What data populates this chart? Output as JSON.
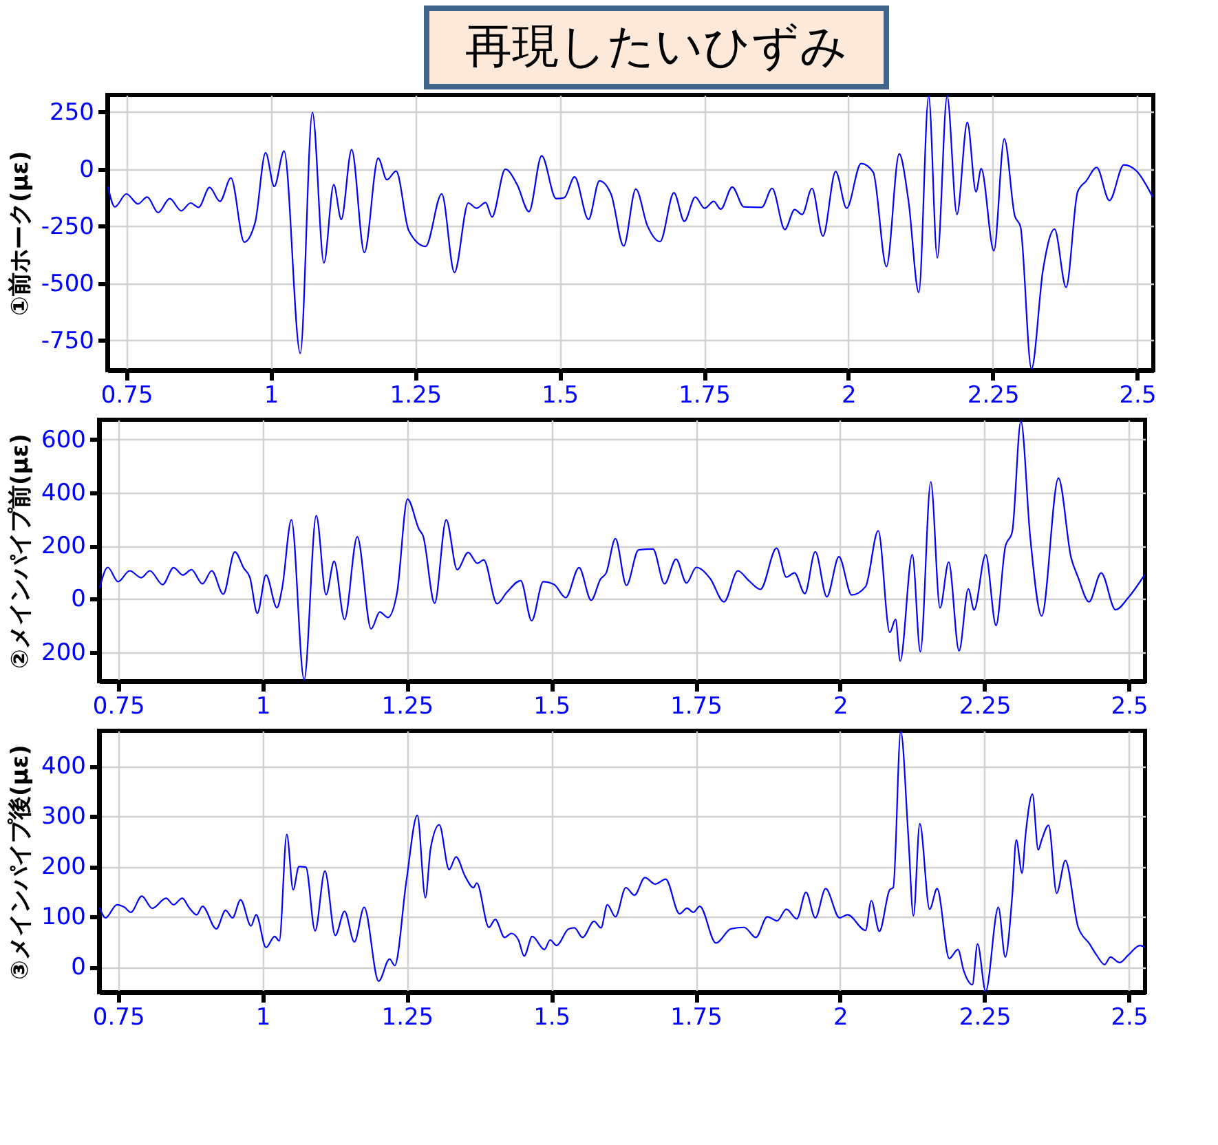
{
  "chart_data": [
    {
      "type": "line",
      "title": "再現したいひずみ",
      "ylabel": "①前ホーク(με)",
      "color": "#0000ff",
      "grid": true,
      "xlim": [
        0.717,
        2.528
      ],
      "ylim": [
        -880,
        325
      ],
      "xticks": [
        0.75,
        1,
        1.25,
        1.5,
        1.75,
        2,
        2.25,
        2.5
      ],
      "yticks": [
        -750,
        -500,
        -250,
        0,
        250
      ],
      "x": [
        0.718,
        0.73,
        0.75,
        0.77,
        0.786,
        0.805,
        0.825,
        0.845,
        0.861,
        0.875,
        0.894,
        0.912,
        0.931,
        0.954,
        0.973,
        0.991,
        1.006,
        1.023,
        1.051,
        1.072,
        1.092,
        1.109,
        1.122,
        1.14,
        1.162,
        1.186,
        1.201,
        1.217,
        1.239,
        1.268,
        1.296,
        1.318,
        1.342,
        1.356,
        1.372,
        1.383,
        1.406,
        1.427,
        1.447,
        1.469,
        1.494,
        1.508,
        1.526,
        1.55,
        1.569,
        1.589,
        1.611,
        1.632,
        1.652,
        1.674,
        1.698,
        1.716,
        1.735,
        1.751,
        1.767,
        1.779,
        1.799,
        1.819,
        1.85,
        1.868,
        1.89,
        1.907,
        1.92,
        1.937,
        1.956,
        1.978,
        1.997,
        2.022,
        2.043,
        2.066,
        2.088,
        2.104,
        2.122,
        2.139,
        2.154,
        2.171,
        2.188,
        2.206,
        2.221,
        2.23,
        2.252,
        2.27,
        2.288,
        2.298,
        2.317,
        2.337,
        2.357,
        2.377,
        2.397,
        2.412,
        2.43,
        2.452,
        2.477,
        2.499,
        2.527
      ],
      "values": [
        -76,
        -165,
        -108,
        -152,
        -122,
        -190,
        -129,
        -182,
        -148,
        -167,
        -80,
        -141,
        -38,
        -319,
        -232,
        72,
        -76,
        80,
        -806,
        249,
        -410,
        -68,
        -220,
        86,
        -365,
        48,
        -46,
        -8,
        -270,
        -338,
        -108,
        -452,
        -148,
        -171,
        -146,
        -209,
        0,
        -70,
        -186,
        59,
        -129,
        -125,
        -34,
        -220,
        -51,
        -108,
        -336,
        -87,
        -247,
        -317,
        -103,
        -228,
        -122,
        -171,
        -141,
        -175,
        -78,
        -165,
        -167,
        -84,
        -264,
        -177,
        -198,
        -84,
        -293,
        -10,
        -171,
        25,
        -13,
        -426,
        67,
        -137,
        -540,
        320,
        -388,
        320,
        -198,
        205,
        -99,
        2,
        -357,
        133,
        -203,
        -251,
        -874,
        -441,
        -262,
        -517,
        -99,
        -51,
        8,
        -137,
        19,
        -8,
        -122
      ]
    },
    {
      "type": "line",
      "ylabel": "②メインパイプ前(με)",
      "color": "#0000ff",
      "grid": true,
      "xlim": [
        0.717,
        2.528
      ],
      "ylim": [
        -310,
        675
      ],
      "xticks": [
        0.75,
        1,
        1.25,
        1.5,
        1.75,
        2,
        2.25,
        2.5
      ],
      "yticks": [
        {
          "value": -200,
          "label": "200"
        },
        0,
        200,
        400,
        600
      ],
      "x": [
        0.718,
        0.732,
        0.75,
        0.77,
        0.79,
        0.805,
        0.827,
        0.846,
        0.862,
        0.877,
        0.896,
        0.912,
        0.932,
        0.952,
        0.968,
        0.978,
        0.991,
        1.006,
        1.025,
        1.034,
        1.05,
        1.072,
        1.093,
        1.11,
        1.124,
        1.142,
        1.164,
        1.188,
        1.203,
        1.217,
        1.233,
        1.251,
        1.271,
        1.278,
        1.298,
        1.318,
        1.337,
        1.356,
        1.372,
        1.383,
        1.406,
        1.423,
        1.447,
        1.466,
        1.486,
        1.505,
        1.525,
        1.548,
        1.569,
        1.585,
        1.595,
        1.611,
        1.63,
        1.651,
        1.676,
        1.696,
        1.716,
        1.734,
        1.751,
        1.775,
        1.799,
        1.823,
        1.842,
        1.862,
        1.89,
        1.907,
        1.921,
        1.939,
        1.957,
        1.977,
        1.998,
        2.02,
        2.044,
        2.066,
        2.086,
        2.096,
        2.104,
        2.125,
        2.139,
        2.157,
        2.173,
        2.188,
        2.206,
        2.222,
        2.232,
        2.252,
        2.27,
        2.286,
        2.298,
        2.313,
        2.329,
        2.349,
        2.378,
        2.4,
        2.412,
        2.431,
        2.452,
        2.477,
        2.499,
        2.527
      ],
      "values": [
        41,
        119,
        65,
        106,
        80,
        106,
        54,
        118,
        90,
        110,
        57,
        106,
        18,
        177,
        114,
        82,
        -54,
        90,
        -33,
        41,
        298,
        -305,
        314,
        16,
        142,
        -77,
        234,
        -113,
        -49,
        -70,
        25,
        376,
        262,
        237,
        -16,
        298,
        110,
        175,
        134,
        147,
        -18,
        25,
        69,
        -82,
        65,
        54,
        5,
        118,
        -5,
        74,
        98,
        227,
        51,
        185,
        188,
        57,
        150,
        60,
        119,
        77,
        -11,
        106,
        69,
        36,
        191,
        82,
        98,
        20,
        178,
        8,
        159,
        15,
        46,
        257,
        -126,
        -77,
        -234,
        167,
        -199,
        441,
        -34,
        139,
        -196,
        38,
        -41,
        167,
        -100,
        196,
        253,
        670,
        237,
        -64,
        455,
        155,
        82,
        -11,
        98,
        -41,
        5,
        90
      ]
    },
    {
      "type": "line",
      "ylabel": "③メインパイプ後(με)",
      "color": "#0000ff",
      "grid": true,
      "xlim": [
        0.717,
        2.528
      ],
      "ylim": [
        -50,
        470
      ],
      "xticks": [
        0.75,
        1,
        1.25,
        1.5,
        1.75,
        2,
        2.25,
        2.5
      ],
      "yticks": [
        0,
        100,
        200,
        300,
        400
      ],
      "x": [
        0.718,
        0.728,
        0.748,
        0.761,
        0.772,
        0.791,
        0.809,
        0.833,
        0.846,
        0.861,
        0.873,
        0.886,
        0.896,
        0.92,
        0.936,
        0.948,
        0.962,
        0.98,
        0.989,
        1.006,
        1.021,
        1.029,
        1.042,
        1.053,
        1.063,
        1.075,
        1.091,
        1.108,
        1.126,
        1.142,
        1.159,
        1.176,
        1.201,
        1.22,
        1.229,
        1.249,
        1.268,
        1.282,
        1.291,
        1.306,
        1.323,
        1.335,
        1.351,
        1.365,
        1.371,
        1.392,
        1.403,
        1.419,
        1.431,
        1.443,
        1.453,
        1.467,
        1.488,
        1.498,
        1.509,
        1.53,
        1.54,
        1.554,
        1.574,
        1.586,
        1.597,
        1.611,
        1.629,
        1.644,
        1.662,
        1.68,
        1.698,
        1.722,
        1.735,
        1.746,
        1.757,
        1.785,
        1.811,
        1.834,
        1.854,
        1.874,
        1.891,
        1.907,
        1.925,
        1.941,
        1.957,
        1.975,
        1.999,
        2.013,
        2.044,
        2.054,
        2.068,
        2.086,
        2.092,
        2.105,
        2.118,
        2.127,
        2.138,
        2.155,
        2.168,
        2.189,
        2.204,
        2.214,
        2.229,
        2.238,
        2.252,
        2.274,
        2.286,
        2.298,
        2.305,
        2.315,
        2.321,
        2.333,
        2.343,
        2.349,
        2.361,
        2.375,
        2.39,
        2.412,
        2.432,
        2.444,
        2.458,
        2.468,
        2.484,
        2.499,
        2.519,
        2.527
      ],
      "values": [
        118,
        98,
        124,
        119,
        109,
        141,
        117,
        137,
        124,
        137,
        118,
        104,
        121,
        76,
        113,
        98,
        134,
        82,
        104,
        39,
        61,
        52,
        264,
        154,
        200,
        199,
        72,
        191,
        63,
        111,
        50,
        119,
        -28,
        16,
        3,
        171,
        302,
        138,
        236,
        283,
        194,
        219,
        180,
        158,
        167,
        79,
        95,
        59,
        67,
        54,
        22,
        61,
        35,
        54,
        43,
        76,
        78,
        59,
        91,
        78,
        124,
        100,
        158,
        143,
        178,
        165,
        175,
        106,
        117,
        109,
        121,
        48,
        76,
        79,
        59,
        100,
        92,
        115,
        96,
        149,
        98,
        156,
        98,
        104,
        73,
        132,
        71,
        154,
        158,
        469,
        262,
        102,
        285,
        115,
        156,
        17,
        35,
        -7,
        -35,
        46,
        -48,
        119,
        20,
        141,
        253,
        187,
        262,
        344,
        233,
        253,
        282,
        147,
        212,
        80,
        46,
        24,
        5,
        20,
        9,
        24,
        43,
        40
      ]
    }
  ]
}
